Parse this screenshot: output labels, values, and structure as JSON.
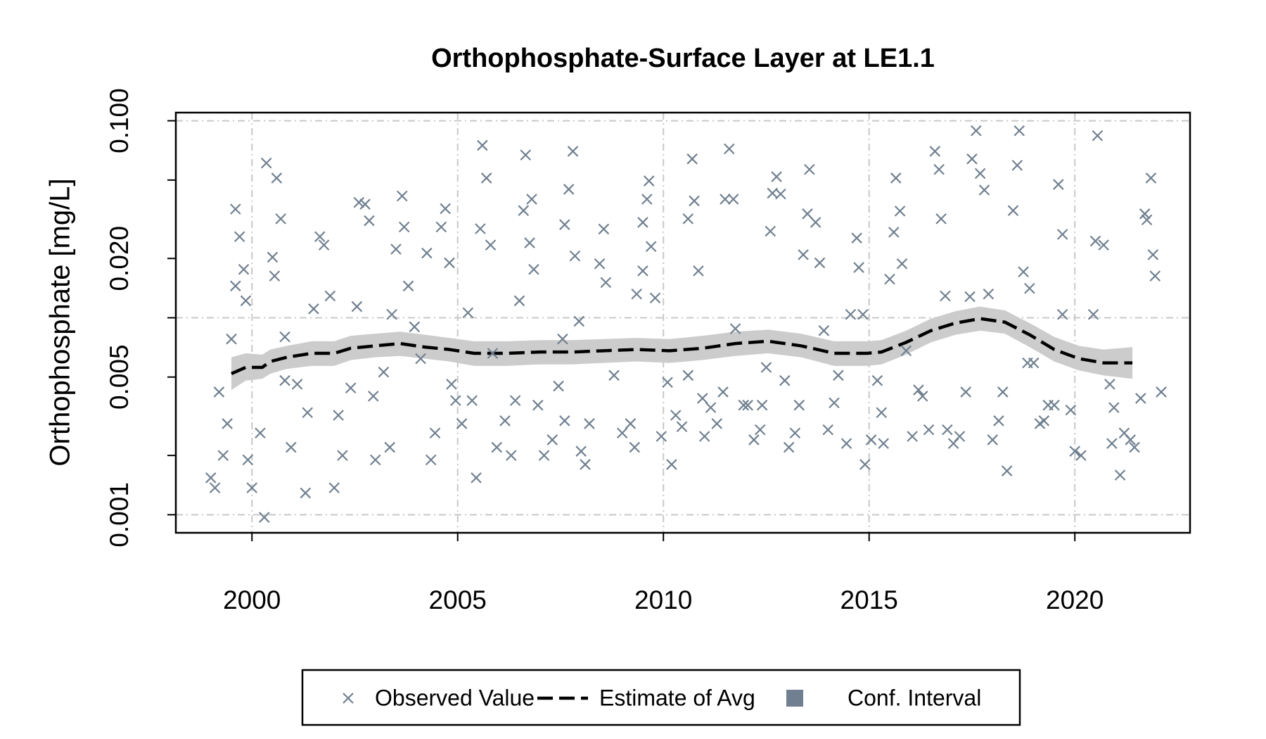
{
  "chart_data": {
    "type": "scatter",
    "title": "Orthophosphate-Surface Layer at LE1.1",
    "y_label": "Orthophosphate [mg/L]",
    "ylog": true,
    "xlim": [
      1998.15,
      2022.8
    ],
    "ylim": [
      0.00081,
      0.11
    ],
    "xticks": [
      2000,
      2005,
      2010,
      2015,
      2020
    ],
    "yticks": [
      {
        "value": 0.1,
        "label": "0.100"
      },
      {
        "value": 0.02,
        "label": "0.020"
      },
      0.005,
      0.001
    ],
    "yticks_minor": [
      0.05,
      0.01,
      0.002
    ],
    "grid": true,
    "ygrid": [
      0.1,
      0.01,
      0.001
    ],
    "legend": "bottom",
    "series": [
      {
        "name": "Observed Value",
        "color": "#708090",
        "marker": "x",
        "x": [
          1999.0,
          1999.1,
          1999.2,
          1999.3,
          1999.4,
          1999.5,
          1999.6,
          1999.7,
          1999.8,
          1999.85,
          1999.6,
          1999.9,
          2000.0,
          2000.2,
          2000.3,
          2000.35,
          2000.5,
          2000.6,
          2000.7,
          2000.55,
          2000.8,
          2000.95,
          2000.8,
          2001.1,
          2001.3,
          2001.35,
          2001.5,
          2001.65,
          2001.75,
          2001.9,
          2002.0,
          2002.1,
          2002.2,
          2002.4,
          2002.55,
          2002.6,
          2002.75,
          2002.85,
          2002.95,
          2003.0,
          2003.2,
          2003.35,
          2003.4,
          2003.5,
          2003.65,
          2003.7,
          2003.8,
          2003.95,
          2004.1,
          2004.25,
          2004.35,
          2004.45,
          2004.6,
          2004.7,
          2004.8,
          2004.85,
          2004.95,
          2005.1,
          2005.25,
          2005.35,
          2005.45,
          2005.55,
          2005.6,
          2005.7,
          2005.8,
          2005.85,
          2005.95,
          2006.15,
          2006.3,
          2006.4,
          2006.5,
          2006.6,
          2006.65,
          2006.75,
          2006.8,
          2006.85,
          2006.95,
          2007.1,
          2007.3,
          2007.45,
          2007.6,
          2007.55,
          2007.6,
          2007.7,
          2007.8,
          2007.85,
          2007.95,
          2008.0,
          2008.1,
          2008.2,
          2008.45,
          2008.55,
          2008.6,
          2008.8,
          2009.0,
          2009.2,
          2009.3,
          2009.35,
          2009.5,
          2009.5,
          2009.6,
          2009.65,
          2009.7,
          2009.8,
          2009.95,
          2010.1,
          2010.2,
          2010.3,
          2010.45,
          2010.6,
          2010.6,
          2010.7,
          2010.75,
          2010.85,
          2010.95,
          2011.0,
          2011.15,
          2011.3,
          2011.45,
          2011.5,
          2011.6,
          2011.7,
          2011.75,
          2011.95,
          2012.05,
          2012.2,
          2012.35,
          2012.4,
          2012.5,
          2012.6,
          2012.65,
          2012.75,
          2012.85,
          2012.95,
          2013.05,
          2013.2,
          2013.3,
          2013.4,
          2013.5,
          2013.55,
          2013.7,
          2013.8,
          2013.9,
          2014.0,
          2014.15,
          2014.25,
          2014.45,
          2014.55,
          2014.7,
          2014.75,
          2014.85,
          2014.9,
          2015.05,
          2015.2,
          2015.3,
          2015.35,
          2015.5,
          2015.6,
          2015.65,
          2015.75,
          2015.8,
          2015.9,
          2016.05,
          2016.2,
          2016.3,
          2016.45,
          2016.6,
          2016.7,
          2016.75,
          2016.85,
          2016.9,
          2017.05,
          2017.2,
          2017.35,
          2017.45,
          2017.5,
          2017.6,
          2017.7,
          2017.8,
          2017.9,
          2018.0,
          2018.15,
          2018.25,
          2018.35,
          2018.5,
          2018.6,
          2018.65,
          2018.75,
          2018.85,
          2018.9,
          2019.0,
          2019.15,
          2019.25,
          2019.35,
          2019.5,
          2019.6,
          2019.7,
          2019.7,
          2019.9,
          2020.0,
          2020.15,
          2020.45,
          2020.5,
          2020.55,
          2020.7,
          2020.85,
          2020.95,
          2020.9,
          2021.1,
          2021.2,
          2021.35,
          2021.45,
          2021.6,
          2021.7,
          2021.75,
          2021.85,
          2021.9,
          2021.95,
          2022.1
        ],
        "values": [
          0.00154,
          0.00137,
          0.0042,
          0.002,
          0.0029,
          0.0078,
          0.0356,
          0.0258,
          0.0176,
          0.0122,
          0.0145,
          0.0019,
          0.00137,
          0.0026,
          0.00097,
          0.061,
          0.0203,
          0.0512,
          0.0318,
          0.0163,
          0.008,
          0.0022,
          0.0048,
          0.0046,
          0.00129,
          0.0033,
          0.0111,
          0.0258,
          0.0234,
          0.0129,
          0.00137,
          0.0032,
          0.002,
          0.0044,
          0.0114,
          0.0385,
          0.0377,
          0.0311,
          0.004,
          0.0019,
          0.0053,
          0.0022,
          0.0104,
          0.0223,
          0.0415,
          0.0289,
          0.0145,
          0.009,
          0.0062,
          0.0213,
          0.0019,
          0.0026,
          0.0289,
          0.0358,
          0.019,
          0.0046,
          0.0038,
          0.0029,
          0.0106,
          0.0038,
          0.00154,
          0.0283,
          0.075,
          0.0512,
          0.0234,
          0.0066,
          0.0022,
          0.003,
          0.002,
          0.0038,
          0.0122,
          0.035,
          0.067,
          0.024,
          0.04,
          0.0176,
          0.0036,
          0.002,
          0.0024,
          0.0045,
          0.003,
          0.0078,
          0.0297,
          0.0449,
          0.07,
          0.0206,
          0.0096,
          0.0021,
          0.0018,
          0.0029,
          0.0188,
          0.0282,
          0.0151,
          0.0051,
          0.0026,
          0.0029,
          0.0022,
          0.0132,
          0.0173,
          0.0305,
          0.04,
          0.0495,
          0.023,
          0.0126,
          0.0025,
          0.0047,
          0.0018,
          0.0032,
          0.0028,
          0.0051,
          0.0318,
          0.064,
          0.0392,
          0.0173,
          0.0039,
          0.0025,
          0.0035,
          0.0029,
          0.0042,
          0.04,
          0.072,
          0.04,
          0.0088,
          0.0036,
          0.0036,
          0.0024,
          0.0027,
          0.0036,
          0.0056,
          0.0275,
          0.0429,
          0.052,
          0.0425,
          0.0048,
          0.0022,
          0.0026,
          0.0036,
          0.0209,
          0.0337,
          0.0566,
          0.0305,
          0.019,
          0.0086,
          0.0027,
          0.0037,
          0.0051,
          0.0023,
          0.0104,
          0.0254,
          0.018,
          0.0104,
          0.0018,
          0.0024,
          0.0048,
          0.0033,
          0.0023,
          0.0157,
          0.0272,
          0.0512,
          0.0348,
          0.0188,
          0.0068,
          0.0025,
          0.0043,
          0.004,
          0.0027,
          0.07,
          0.0566,
          0.0318,
          0.0129,
          0.0027,
          0.0023,
          0.0025,
          0.0042,
          0.0128,
          0.064,
          0.089,
          0.054,
          0.0445,
          0.0132,
          0.0024,
          0.003,
          0.0042,
          0.00167,
          0.035,
          0.0594,
          0.089,
          0.0171,
          0.0059,
          0.0141,
          0.0059,
          0.0029,
          0.003,
          0.0036,
          0.0036,
          0.0475,
          0.0265,
          0.0104,
          0.0034,
          0.0021,
          0.002,
          0.0104,
          0.0245,
          0.084,
          0.0234,
          0.0046,
          0.0035,
          0.0023,
          0.00159,
          0.0026,
          0.0024,
          0.0022,
          0.0039,
          0.0337,
          0.0314,
          0.0512,
          0.0209,
          0.0163,
          0.0042
        ]
      },
      {
        "name": "Estimate of Avg",
        "color": "#000000",
        "style": "dashed",
        "x": [
          1999.5,
          1999.85,
          2000.25,
          2000.45,
          2000.85,
          2001.45,
          2002.0,
          2002.4,
          2003.0,
          2003.6,
          2004.2,
          2004.8,
          2005.4,
          2006.2,
          2007.0,
          2007.8,
          2008.55,
          2009.35,
          2010.15,
          2010.95,
          2011.75,
          2012.55,
          2013.35,
          2014.15,
          2014.95,
          2015.3,
          2015.9,
          2016.5,
          2017.1,
          2017.7,
          2018.3,
          2018.9,
          2019.5,
          2020.1,
          2020.7,
          2021.4
        ],
        "values": [
          0.0052,
          0.0056,
          0.0056,
          0.006,
          0.0063,
          0.0066,
          0.0066,
          0.007,
          0.0072,
          0.0074,
          0.0071,
          0.0069,
          0.0066,
          0.0066,
          0.0067,
          0.0067,
          0.0068,
          0.0069,
          0.0068,
          0.007,
          0.0074,
          0.0076,
          0.0072,
          0.0066,
          0.0066,
          0.0067,
          0.0075,
          0.0086,
          0.0094,
          0.0099,
          0.0095,
          0.0082,
          0.0069,
          0.0062,
          0.0059,
          0.0059
        ]
      },
      {
        "name": "Conf. Interval",
        "color": "#708090",
        "fill": "#cccccc",
        "x": [
          1999.5,
          1999.85,
          2000.25,
          2000.45,
          2000.85,
          2001.45,
          2002.0,
          2002.4,
          2003.0,
          2003.6,
          2004.2,
          2004.8,
          2005.4,
          2006.2,
          2007.0,
          2007.8,
          2008.55,
          2009.35,
          2010.15,
          2010.95,
          2011.75,
          2012.55,
          2013.35,
          2014.15,
          2014.95,
          2015.3,
          2015.9,
          2016.5,
          2017.1,
          2017.7,
          2018.3,
          2018.9,
          2019.5,
          2020.1,
          2020.7,
          2021.4
        ],
        "lower": [
          0.0043,
          0.0048,
          0.0049,
          0.0052,
          0.0055,
          0.0057,
          0.0057,
          0.0061,
          0.0063,
          0.0064,
          0.0062,
          0.006,
          0.0057,
          0.0057,
          0.0058,
          0.0058,
          0.0059,
          0.006,
          0.0059,
          0.0061,
          0.0064,
          0.0066,
          0.0063,
          0.0057,
          0.0057,
          0.0058,
          0.0065,
          0.0075,
          0.0082,
          0.0086,
          0.0083,
          0.0071,
          0.006,
          0.0054,
          0.0051,
          0.0049
        ],
        "upper": [
          0.0063,
          0.0066,
          0.0065,
          0.0069,
          0.0072,
          0.0076,
          0.0076,
          0.0081,
          0.0083,
          0.0085,
          0.0082,
          0.0079,
          0.0076,
          0.0076,
          0.0077,
          0.0077,
          0.0078,
          0.0079,
          0.0078,
          0.0081,
          0.0085,
          0.0087,
          0.0083,
          0.0076,
          0.0076,
          0.0077,
          0.0086,
          0.0099,
          0.0108,
          0.0114,
          0.0109,
          0.0094,
          0.008,
          0.0072,
          0.0069,
          0.0071
        ]
      }
    ]
  }
}
